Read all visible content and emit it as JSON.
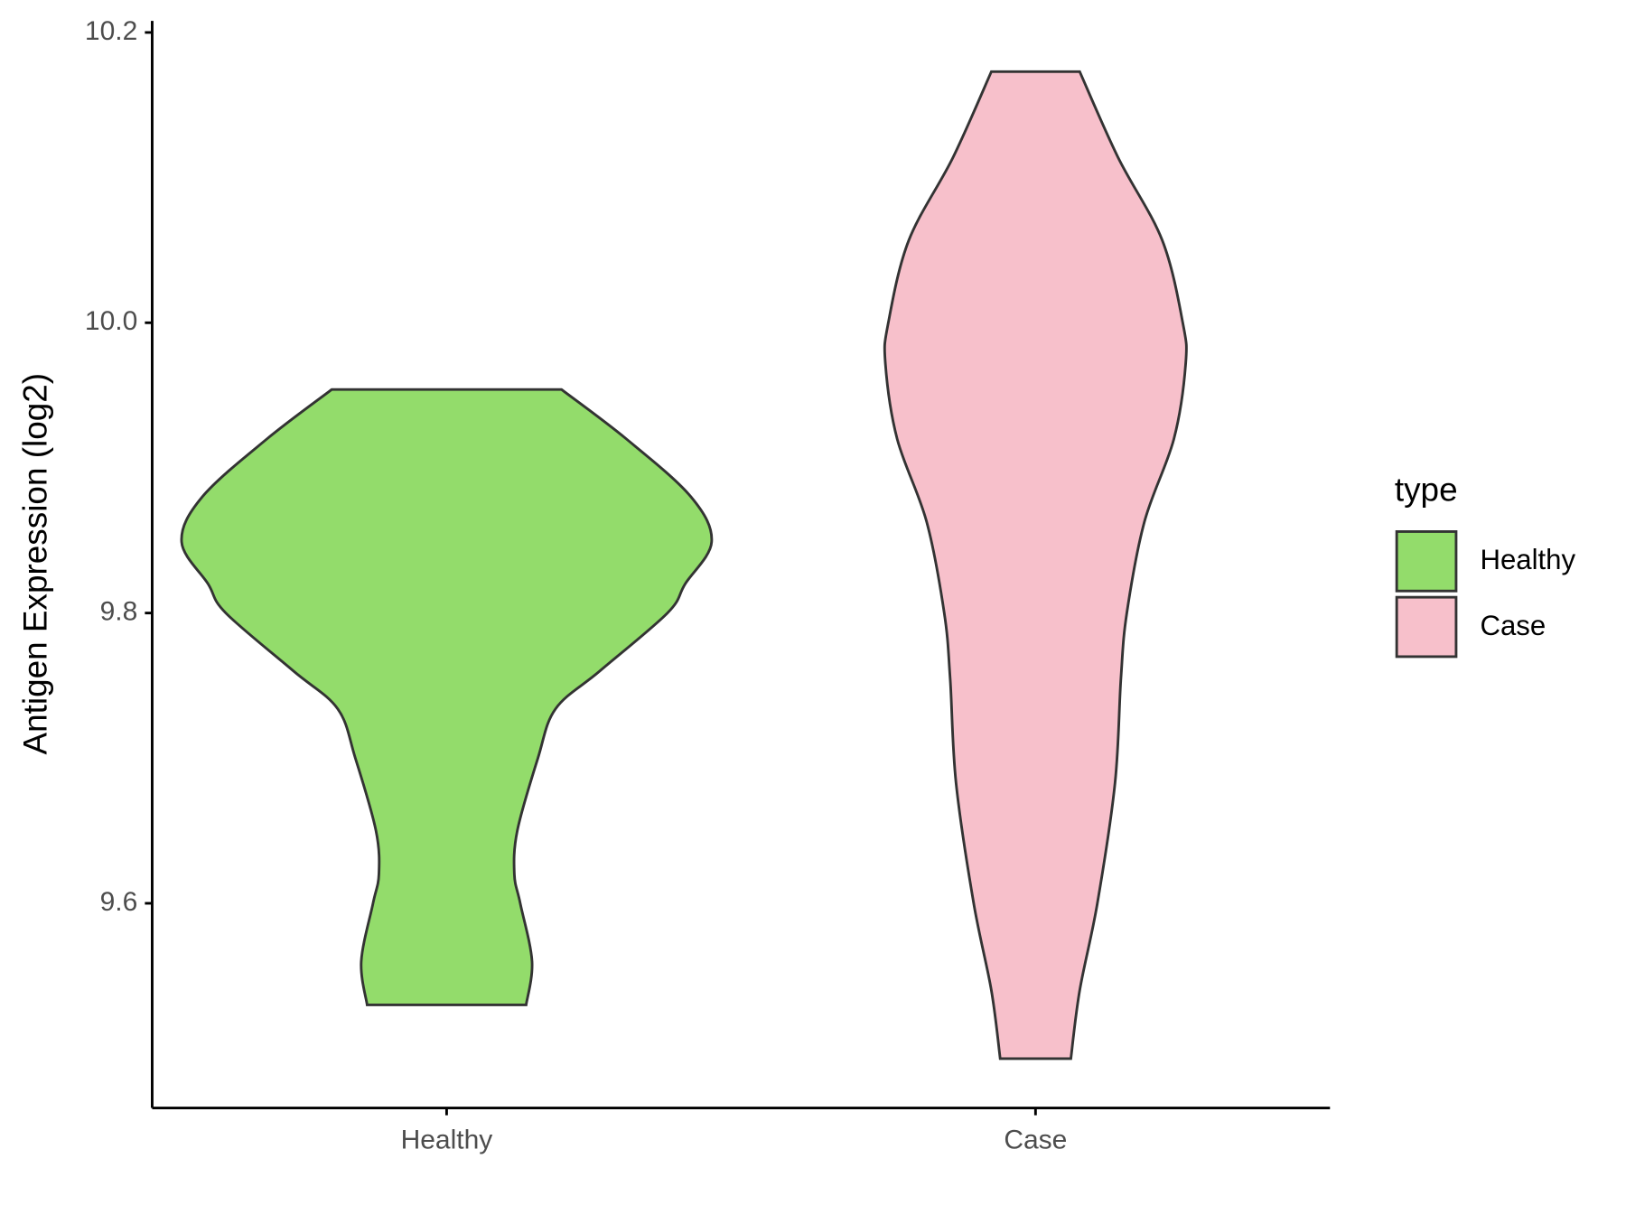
{
  "chart_data": {
    "type": "violin",
    "y_label": "Antigen Expression (log2)",
    "categories": [
      "Healthy",
      "Case"
    ],
    "series": [
      {
        "name": "Healthy",
        "color": "#93dc6b",
        "y": [
          9.954,
          9.92,
          9.88,
          9.849,
          9.82,
          9.8,
          9.76,
          9.734,
          9.7,
          9.65,
          9.62,
          9.6,
          9.56,
          9.53
        ],
        "half_width": [
          0.39,
          0.61,
          0.83,
          0.9,
          0.81,
          0.75,
          0.52,
          0.37,
          0.31,
          0.24,
          0.23,
          0.25,
          0.29,
          0.27
        ]
      },
      {
        "name": "Case",
        "color": "#f7c0cb",
        "y": [
          10.173,
          10.114,
          10.057,
          10.0,
          9.972,
          9.92,
          9.863,
          9.8,
          9.755,
          9.683,
          9.6,
          9.54,
          9.493
        ],
        "half_width": [
          0.15,
          0.28,
          0.43,
          0.5,
          0.51,
          0.47,
          0.37,
          0.31,
          0.29,
          0.27,
          0.21,
          0.15,
          0.12
        ]
      }
    ],
    "ylim": [
      9.459,
      10.208
    ],
    "yticks": [
      {
        "value": 9.6,
        "label": "9.6"
      },
      {
        "value": 9.8,
        "label": "9.8"
      },
      {
        "value": 10.0,
        "label": "10.0"
      },
      {
        "value": 10.2,
        "label": "10.2"
      }
    ],
    "legend": {
      "title": "type",
      "position": "right"
    },
    "grid": false
  }
}
